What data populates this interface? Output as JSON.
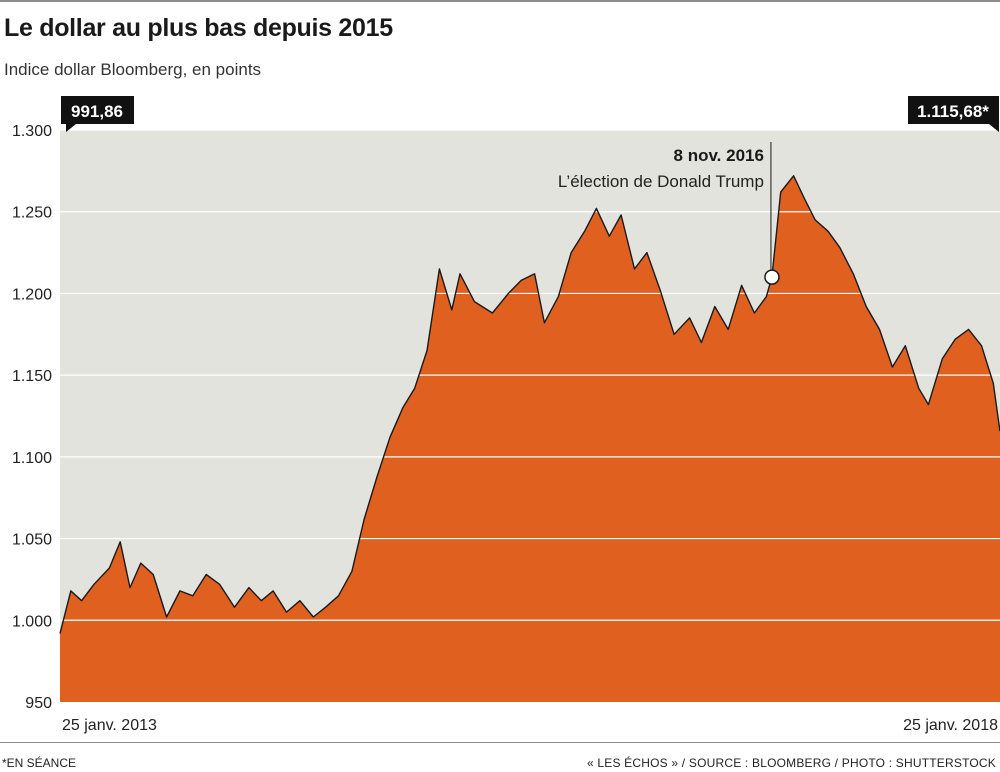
{
  "title": "Le dollar au plus bas depuis 2015",
  "subtitle": "Indice dollar Bloomberg, en points",
  "footnote": "*EN SÉANCE",
  "credit": "« LES ÉCHOS » / SOURCE :  BLOOMBERG / PHOTO : SHUTTERSTOCK",
  "colors": {
    "plot_background": "#e3e3dd",
    "area_fill": "#e0601f",
    "area_stroke": "#1a1a1a",
    "gridline": "#ffffff",
    "callout_background": "#111111",
    "callout_text": "#ffffff"
  },
  "chart_data": {
    "type": "area",
    "title": "Le dollar au plus bas depuis 2015",
    "subtitle": "Indice dollar Bloomberg, en points",
    "ylim": [
      950,
      1300
    ],
    "yticks": [
      950,
      1000,
      1050,
      1100,
      1150,
      1200,
      1250,
      1300
    ],
    "ytick_labels": [
      "950",
      "1.000",
      "1.050",
      "1.100",
      "1.150",
      "1.200",
      "1.250",
      "1.300"
    ],
    "xlim": [
      "2013-01-25",
      "2018-01-25"
    ],
    "xtick_labels": [
      {
        "date": "2013-01-25",
        "label": "25 janv. 2013"
      },
      {
        "date": "2018-01-25",
        "label": "25 janv. 2018"
      }
    ],
    "grid": true,
    "start_label": "991,86",
    "end_label": "1.115,68*",
    "annotation": {
      "date": "2016-11-08",
      "value": 1210,
      "date_label": "8 nov. 2016",
      "text": "L’élection de Donald Trump"
    },
    "series": [
      {
        "x": [
          "2013-01-25",
          "2013-02-15",
          "2013-03-08",
          "2013-04-01",
          "2013-05-01",
          "2013-05-22",
          "2013-06-10",
          "2013-07-01",
          "2013-07-25",
          "2013-08-20",
          "2013-09-15",
          "2013-10-10",
          "2013-11-05",
          "2013-12-01",
          "2013-12-30",
          "2014-01-27",
          "2014-02-20",
          "2014-03-15",
          "2014-04-10",
          "2014-05-06",
          "2014-06-01",
          "2014-06-25",
          "2014-07-20",
          "2014-08-15",
          "2014-09-08",
          "2014-10-03",
          "2014-10-28",
          "2014-11-22",
          "2014-12-15",
          "2015-01-08",
          "2015-02-01",
          "2015-02-25",
          "2015-03-13",
          "2015-04-10",
          "2015-05-15",
          "2015-06-15",
          "2015-07-10",
          "2015-08-05",
          "2015-08-24",
          "2015-09-20",
          "2015-10-15",
          "2015-11-10",
          "2015-12-03",
          "2015-12-28",
          "2016-01-20",
          "2016-02-15",
          "2016-03-10",
          "2016-04-05",
          "2016-05-02",
          "2016-06-01",
          "2016-06-24",
          "2016-07-20",
          "2016-08-15",
          "2016-09-10",
          "2016-10-05",
          "2016-10-28",
          "2016-11-08",
          "2016-11-25",
          "2016-12-20",
          "2017-01-10",
          "2017-01-31",
          "2017-02-25",
          "2017-03-20",
          "2017-04-15",
          "2017-05-10",
          "2017-06-05",
          "2017-06-30",
          "2017-07-25",
          "2017-08-20",
          "2017-09-08",
          "2017-10-05",
          "2017-10-30",
          "2017-11-25",
          "2017-12-20",
          "2018-01-12",
          "2018-01-25"
        ],
        "values": [
          991.86,
          1018,
          1012,
          1022,
          1032,
          1048,
          1020,
          1035,
          1028,
          1002,
          1018,
          1015,
          1028,
          1022,
          1008,
          1020,
          1012,
          1018,
          1005,
          1012,
          1002,
          1008,
          1015,
          1030,
          1062,
          1088,
          1112,
          1130,
          1142,
          1165,
          1215,
          1190,
          1212,
          1195,
          1188,
          1200,
          1208,
          1212,
          1182,
          1198,
          1225,
          1238,
          1252,
          1235,
          1248,
          1215,
          1225,
          1202,
          1175,
          1185,
          1170,
          1192,
          1178,
          1205,
          1188,
          1198,
          1210,
          1262,
          1272,
          1258,
          1245,
          1238,
          1228,
          1212,
          1192,
          1178,
          1155,
          1168,
          1142,
          1132,
          1160,
          1172,
          1178,
          1168,
          1145,
          1115.68
        ]
      }
    ]
  }
}
